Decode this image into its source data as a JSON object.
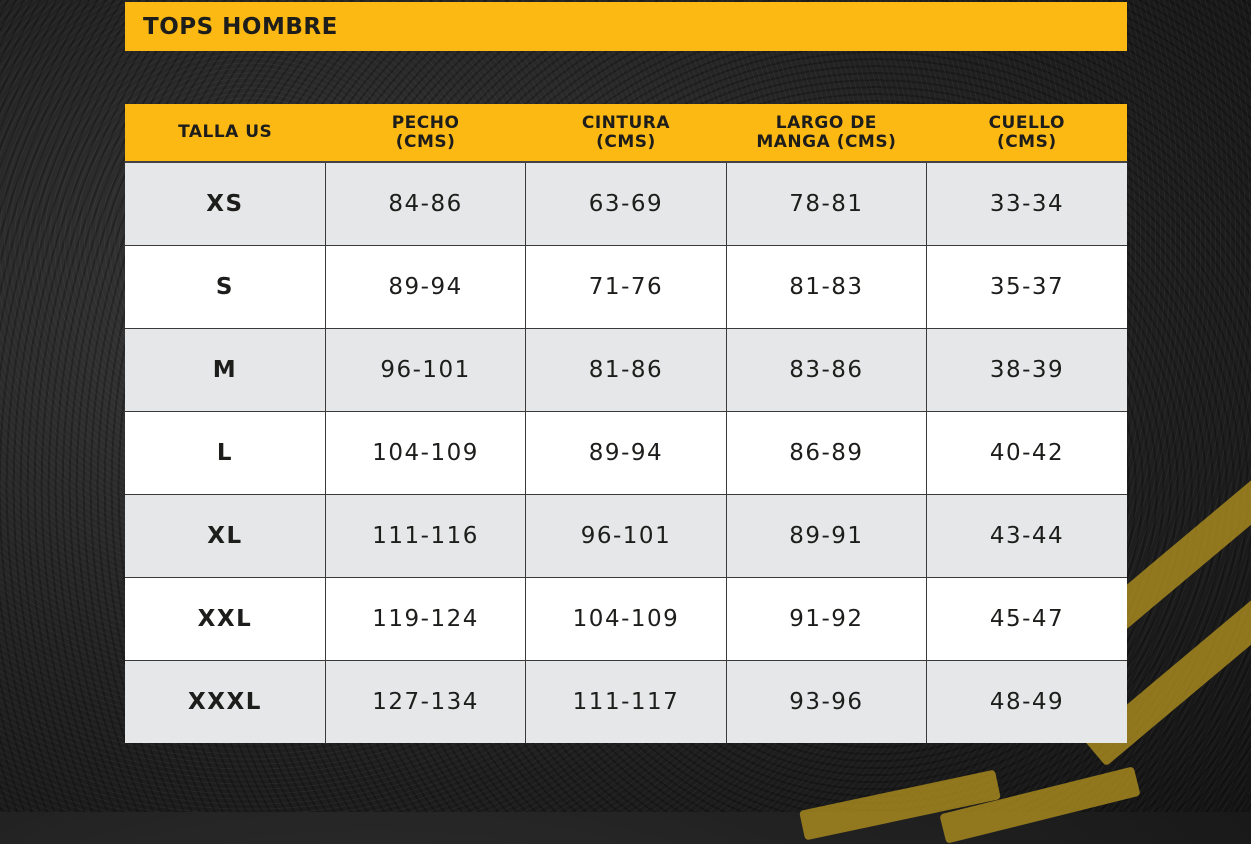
{
  "title": "TOPS HOMBRE",
  "colors": {
    "accent": "#FDB913",
    "row_alt": "#e6e7e8",
    "row": "#ffffff"
  },
  "headers": [
    [
      "TALLA US",
      ""
    ],
    [
      "PECHO",
      "(CMS)"
    ],
    [
      "CINTURA",
      "(CMS)"
    ],
    [
      "LARGO DE",
      "MANGA (CMS)"
    ],
    [
      "CUELLO",
      "(CMS)"
    ]
  ],
  "rows": [
    [
      "XS",
      "84-86",
      "63-69",
      "78-81",
      "33-34"
    ],
    [
      "S",
      "89-94",
      "71-76",
      "81-83",
      "35-37"
    ],
    [
      "M",
      "96-101",
      "81-86",
      "83-86",
      "38-39"
    ],
    [
      "L",
      "104-109",
      "89-94",
      "86-89",
      "40-42"
    ],
    [
      "XL",
      "111-116",
      "96-101",
      "89-91",
      "43-44"
    ],
    [
      "XXL",
      "119-124",
      "104-109",
      "91-92",
      "45-47"
    ],
    [
      "XXXL",
      "127-134",
      "111-117",
      "93-96",
      "48-49"
    ]
  ]
}
